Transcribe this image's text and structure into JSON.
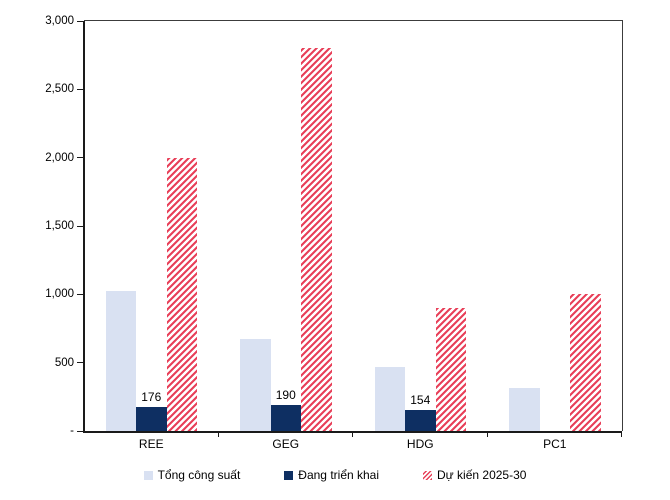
{
  "chart_data": {
    "type": "bar",
    "categories": [
      "REE",
      "GEG",
      "HDG",
      "PC1"
    ],
    "series": [
      {
        "name": "Tổng công suất",
        "color": "#D9E1F2",
        "pattern": "solid",
        "values": [
          1025,
          670,
          470,
          315
        ]
      },
      {
        "name": "Đang triển khai",
        "color": "#0E2F62",
        "pattern": "solid",
        "values": [
          176,
          190,
          154,
          0
        ],
        "data_labels": [
          "176",
          "190",
          "154",
          ""
        ]
      },
      {
        "name": "Dự kiến 2025-30",
        "color": "#E8415A",
        "pattern": "hatch",
        "values": [
          2000,
          2800,
          900,
          1000
        ]
      }
    ],
    "title": "",
    "xlabel": "",
    "ylabel": "",
    "ylim": [
      0,
      3000
    ],
    "yticks": [
      {
        "value": 0,
        "label": "-"
      },
      {
        "value": 500,
        "label": "500"
      },
      {
        "value": 1000,
        "label": "1,000"
      },
      {
        "value": 1500,
        "label": "1,500"
      },
      {
        "value": 2000,
        "label": "2,000"
      },
      {
        "value": 2500,
        "label": "2,500"
      },
      {
        "value": 3000,
        "label": "3,000"
      }
    ],
    "grid": false,
    "legend_position": "bottom"
  },
  "colors": {
    "axis": "#1a1a1a",
    "frame": "#3c3c3c",
    "background": "#ffffff"
  }
}
